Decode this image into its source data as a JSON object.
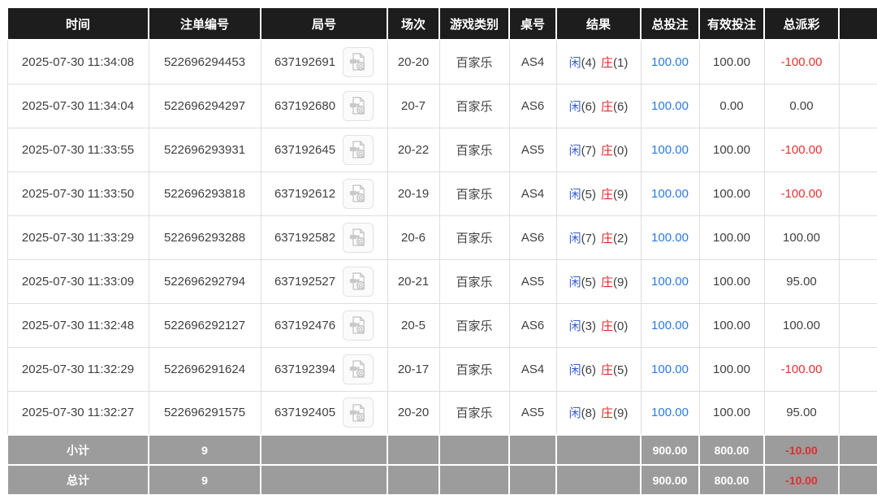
{
  "colors": {
    "header_bg": "#1d1d1d",
    "header_text": "#ffffff",
    "footer_bg": "#9c9c9c",
    "grid_line": "#dedede",
    "player_blue": "#3a5fd0",
    "banker_red": "#dd2c2c",
    "link_blue": "#2a7ae2",
    "negative_red": "#e53030",
    "body_text": "#3f3f3f"
  },
  "table": {
    "columns": [
      {
        "label": "时间"
      },
      {
        "label": "注单编号"
      },
      {
        "label": "局号"
      },
      {
        "label": "场次"
      },
      {
        "label": "游戏类别"
      },
      {
        "label": "桌号"
      },
      {
        "label": "结果"
      },
      {
        "label": "总投注"
      },
      {
        "label": "有效投注"
      },
      {
        "label": "总派彩"
      },
      {
        "label": ""
      }
    ],
    "video_icon": "video-file-icon",
    "rows": [
      {
        "time": "2025-07-30 11:34:08",
        "bet_id": "522696294453",
        "round_id": "637192691",
        "session": "20-20",
        "game_type": "百家乐",
        "table_no": "AS4",
        "player_label": "闲",
        "player_score": "(4)",
        "banker_label": "庄",
        "banker_score": "(1)",
        "total_bet": "100.00",
        "valid_bet": "100.00",
        "payout": "-100.00"
      },
      {
        "time": "2025-07-30 11:34:04",
        "bet_id": "522696294297",
        "round_id": "637192680",
        "session": "20-7",
        "game_type": "百家乐",
        "table_no": "AS6",
        "player_label": "闲",
        "player_score": "(6)",
        "banker_label": "庄",
        "banker_score": "(6)",
        "total_bet": "100.00",
        "valid_bet": "0.00",
        "payout": "0.00"
      },
      {
        "time": "2025-07-30 11:33:55",
        "bet_id": "522696293931",
        "round_id": "637192645",
        "session": "20-22",
        "game_type": "百家乐",
        "table_no": "AS5",
        "player_label": "闲",
        "player_score": "(7)",
        "banker_label": "庄",
        "banker_score": "(0)",
        "total_bet": "100.00",
        "valid_bet": "100.00",
        "payout": "-100.00"
      },
      {
        "time": "2025-07-30 11:33:50",
        "bet_id": "522696293818",
        "round_id": "637192612",
        "session": "20-19",
        "game_type": "百家乐",
        "table_no": "AS4",
        "player_label": "闲",
        "player_score": "(5)",
        "banker_label": "庄",
        "banker_score": "(9)",
        "total_bet": "100.00",
        "valid_bet": "100.00",
        "payout": "-100.00"
      },
      {
        "time": "2025-07-30 11:33:29",
        "bet_id": "522696293288",
        "round_id": "637192582",
        "session": "20-6",
        "game_type": "百家乐",
        "table_no": "AS6",
        "player_label": "闲",
        "player_score": "(7)",
        "banker_label": "庄",
        "banker_score": "(2)",
        "total_bet": "100.00",
        "valid_bet": "100.00",
        "payout": "100.00"
      },
      {
        "time": "2025-07-30 11:33:09",
        "bet_id": "522696292794",
        "round_id": "637192527",
        "session": "20-21",
        "game_type": "百家乐",
        "table_no": "AS5",
        "player_label": "闲",
        "player_score": "(5)",
        "banker_label": "庄",
        "banker_score": "(9)",
        "total_bet": "100.00",
        "valid_bet": "100.00",
        "payout": "95.00"
      },
      {
        "time": "2025-07-30 11:32:48",
        "bet_id": "522696292127",
        "round_id": "637192476",
        "session": "20-5",
        "game_type": "百家乐",
        "table_no": "AS6",
        "player_label": "闲",
        "player_score": "(3)",
        "banker_label": "庄",
        "banker_score": "(0)",
        "total_bet": "100.00",
        "valid_bet": "100.00",
        "payout": "100.00"
      },
      {
        "time": "2025-07-30 11:32:29",
        "bet_id": "522696291624",
        "round_id": "637192394",
        "session": "20-17",
        "game_type": "百家乐",
        "table_no": "AS4",
        "player_label": "闲",
        "player_score": "(6)",
        "banker_label": "庄",
        "banker_score": "(5)",
        "total_bet": "100.00",
        "valid_bet": "100.00",
        "payout": "-100.00"
      },
      {
        "time": "2025-07-30 11:32:27",
        "bet_id": "522696291575",
        "round_id": "637192405",
        "session": "20-20",
        "game_type": "百家乐",
        "table_no": "AS5",
        "player_label": "闲",
        "player_score": "(8)",
        "banker_label": "庄",
        "banker_score": "(9)",
        "total_bet": "100.00",
        "valid_bet": "100.00",
        "payout": "95.00"
      }
    ],
    "footer": [
      {
        "label": "小计",
        "count": "9",
        "total_bet": "900.00",
        "valid_bet": "800.00",
        "payout": "-10.00"
      },
      {
        "label": "总计",
        "count": "9",
        "total_bet": "900.00",
        "valid_bet": "800.00",
        "payout": "-10.00"
      }
    ]
  }
}
